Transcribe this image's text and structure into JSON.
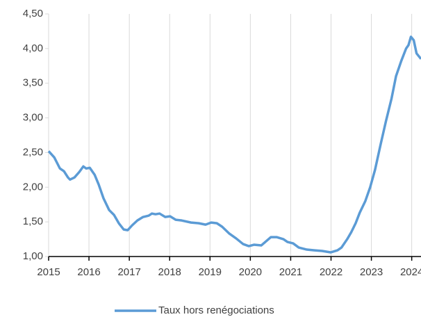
{
  "chart_data": {
    "type": "line",
    "x": [
      2015.0,
      2015.14,
      2015.28,
      2015.38,
      2015.48,
      2015.53,
      2015.64,
      2015.76,
      2015.86,
      2015.93,
      2016.02,
      2016.14,
      2016.24,
      2016.36,
      2016.5,
      2016.62,
      2016.74,
      2016.86,
      2016.96,
      2017.07,
      2017.2,
      2017.34,
      2017.48,
      2017.56,
      2017.65,
      2017.75,
      2017.89,
      2018.01,
      2018.15,
      2018.3,
      2018.53,
      2018.72,
      2018.89,
      2019.03,
      2019.17,
      2019.3,
      2019.48,
      2019.65,
      2019.82,
      2019.96,
      2020.09,
      2020.27,
      2020.39,
      2020.51,
      2020.65,
      2020.82,
      2020.92,
      2021.06,
      2021.2,
      2021.4,
      2021.57,
      2021.78,
      2021.99,
      2022.16,
      2022.26,
      2022.4,
      2022.5,
      2022.61,
      2022.71,
      2022.85,
      2022.97,
      2023.09,
      2023.23,
      2023.36,
      2023.5,
      2023.61,
      2023.74,
      2023.86,
      2023.92,
      2023.98,
      2024.05,
      2024.12,
      2024.23
    ],
    "series": [
      {
        "name": "Taux hors renégociations",
        "color": "#5b9bd5",
        "values": [
          2.52,
          2.43,
          2.27,
          2.23,
          2.14,
          2.11,
          2.14,
          2.22,
          2.3,
          2.27,
          2.28,
          2.18,
          2.04,
          1.84,
          1.67,
          1.6,
          1.48,
          1.39,
          1.38,
          1.45,
          1.52,
          1.57,
          1.59,
          1.62,
          1.61,
          1.62,
          1.57,
          1.58,
          1.53,
          1.52,
          1.49,
          1.48,
          1.46,
          1.49,
          1.48,
          1.43,
          1.33,
          1.26,
          1.18,
          1.15,
          1.17,
          1.16,
          1.22,
          1.28,
          1.28,
          1.25,
          1.21,
          1.19,
          1.13,
          1.1,
          1.09,
          1.08,
          1.06,
          1.09,
          1.13,
          1.25,
          1.35,
          1.48,
          1.63,
          1.8,
          2.0,
          2.25,
          2.62,
          2.95,
          3.28,
          3.6,
          3.82,
          4.0,
          4.05,
          4.17,
          4.12,
          3.93,
          3.85
        ]
      }
    ],
    "xlim": [
      2015,
      2024.23
    ],
    "ylim": [
      1,
      4.5
    ],
    "xticks": [
      2015,
      2016,
      2017,
      2018,
      2019,
      2020,
      2021,
      2022,
      2023,
      2024
    ],
    "yticks": [
      {
        "value": 1,
        "label": "1,00"
      },
      {
        "value": 1.5,
        "label": "1,50"
      },
      {
        "value": 2,
        "label": "2,00"
      },
      {
        "value": 2.5,
        "label": "2,50"
      },
      {
        "value": 3,
        "label": "3,00"
      },
      {
        "value": 3.5,
        "label": "3,50"
      },
      {
        "value": 4,
        "label": "4,00"
      },
      {
        "value": 4.5,
        "label": "4,50"
      }
    ],
    "grid": true,
    "legend": "bottom"
  }
}
